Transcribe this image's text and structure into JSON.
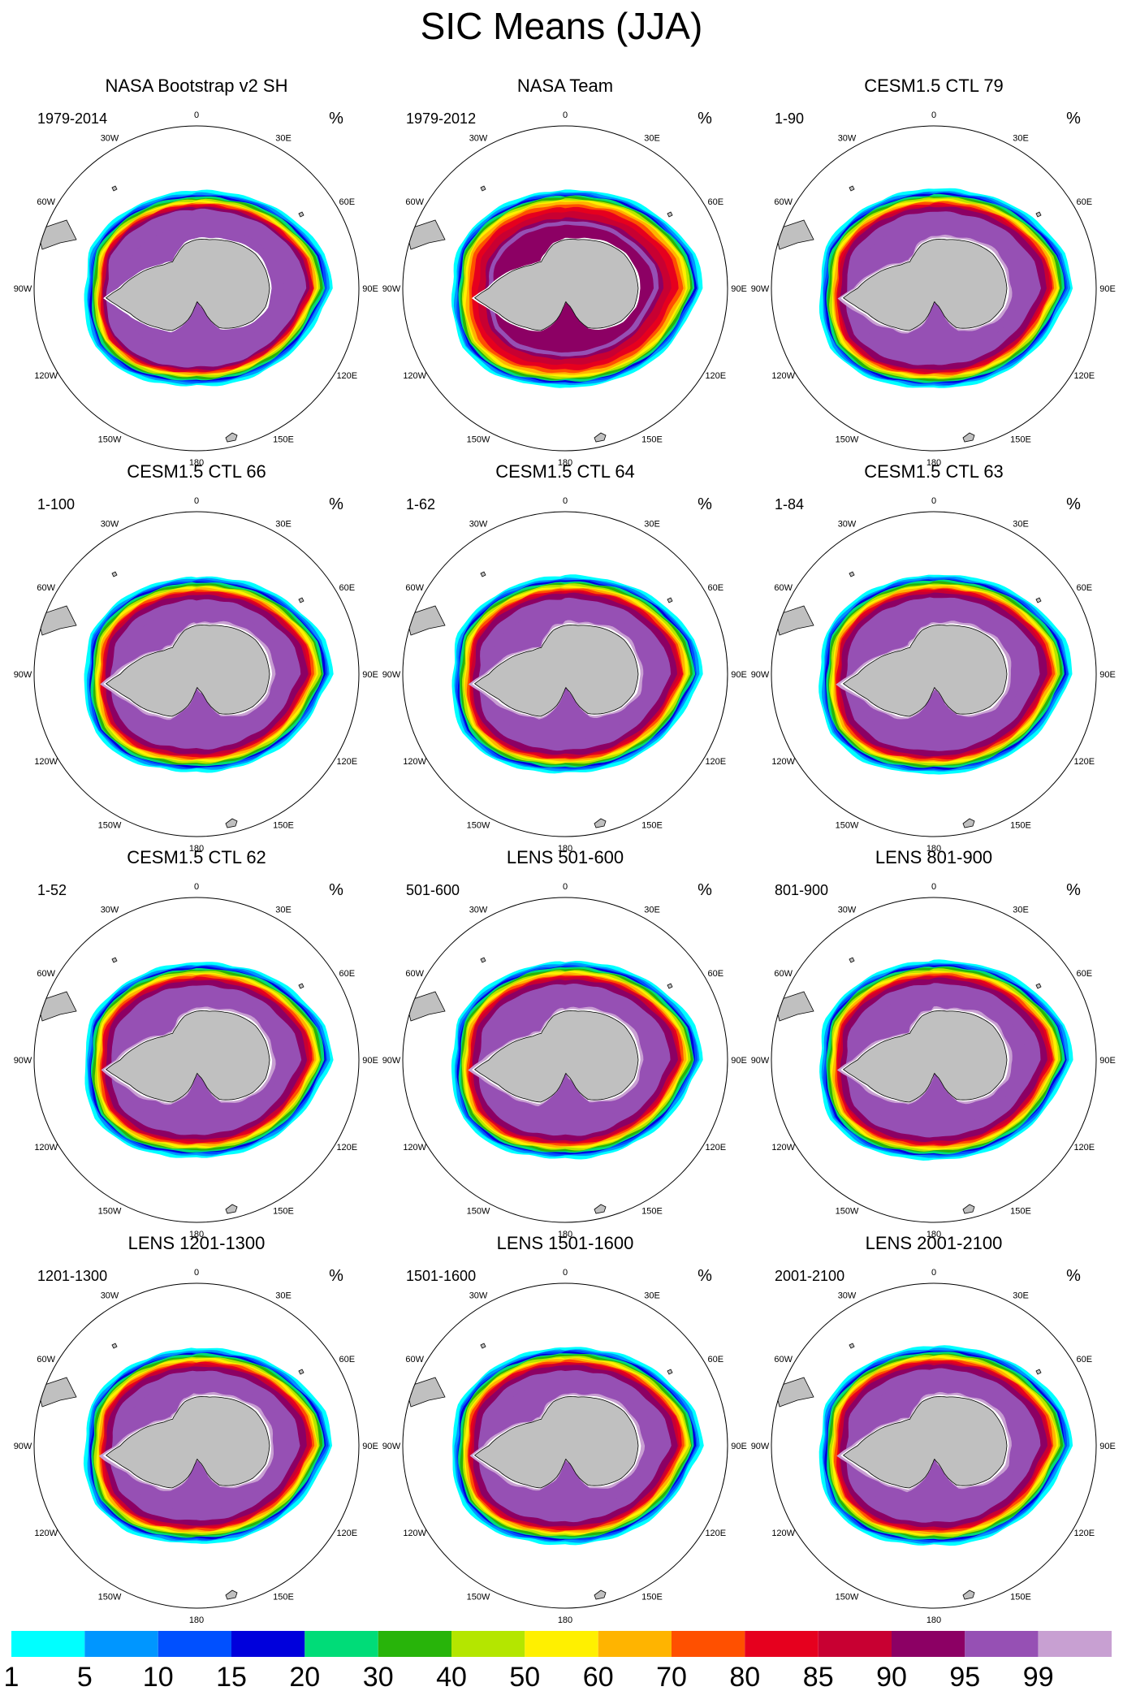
{
  "title": "SIC Means (JJA)",
  "units": "%",
  "lon_labels": [
    "0",
    "30E",
    "60E",
    "90E",
    "120E",
    "150E",
    "180",
    "150W",
    "120W",
    "90W",
    "60W",
    "30W"
  ],
  "panels": [
    {
      "title": "NASA Bootstrap v2 SH",
      "period": "1979-2014",
      "style": "obs_bootstrap"
    },
    {
      "title": "NASA Team",
      "period": "1979-2012",
      "style": "obs_team"
    },
    {
      "title": "CESM1.5 CTL 79",
      "period": "1-90",
      "style": "model"
    },
    {
      "title": "CESM1.5 CTL 66",
      "period": "1-100",
      "style": "model"
    },
    {
      "title": "CESM1.5 CTL 64",
      "period": "1-62",
      "style": "model"
    },
    {
      "title": "CESM1.5 CTL 63",
      "period": "1-84",
      "style": "model"
    },
    {
      "title": "CESM1.5 CTL 62",
      "period": "1-52",
      "style": "model"
    },
    {
      "title": "LENS 501-600",
      "period": "501-600",
      "style": "model"
    },
    {
      "title": "LENS 801-900",
      "period": "801-900",
      "style": "model"
    },
    {
      "title": "LENS 1201-1300",
      "period": "1201-1300",
      "style": "model"
    },
    {
      "title": "LENS 1501-1600",
      "period": "1501-1600",
      "style": "model"
    },
    {
      "title": "LENS 2001-2100",
      "period": "2001-2100",
      "style": "model"
    }
  ],
  "colorbar": {
    "labels": [
      "1",
      "5",
      "10",
      "15",
      "20",
      "30",
      "40",
      "50",
      "60",
      "70",
      "80",
      "85",
      "90",
      "95",
      "99"
    ],
    "colors": [
      "#00ffff",
      "#0096ff",
      "#0050ff",
      "#0000dc",
      "#00dc78",
      "#28b40a",
      "#b4e600",
      "#fff000",
      "#ffb400",
      "#ff5000",
      "#e6001e",
      "#c80032",
      "#8c0064",
      "#9650b4",
      "#c8a0d2"
    ]
  },
  "colors": {
    "land": "#c0c0c0",
    "coast": "#000000"
  }
}
